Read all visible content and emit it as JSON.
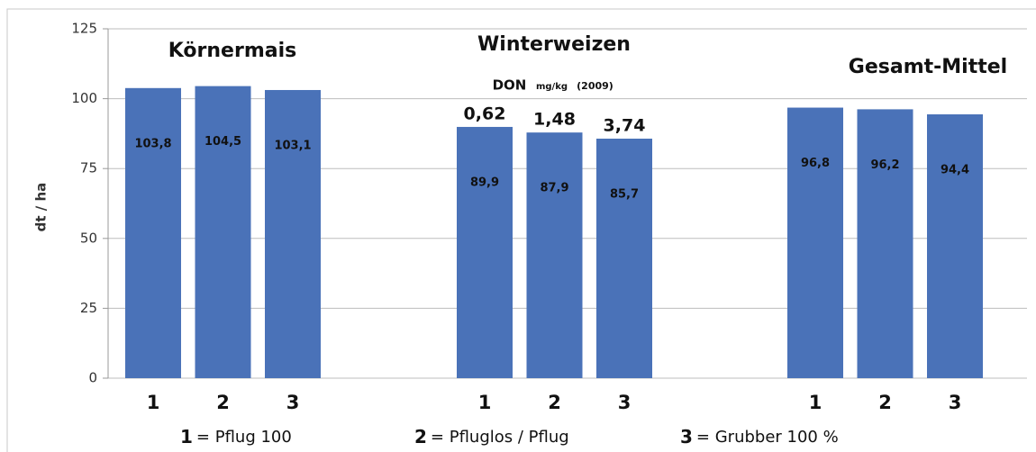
{
  "chart_data": {
    "type": "bar",
    "y_label": "dt / ha",
    "ylim": [
      0,
      125
    ],
    "yticks": [
      0,
      25,
      50,
      75,
      100,
      125
    ],
    "grid": true,
    "color": "#4a72b8",
    "groups": [
      {
        "name": "Körnermais",
        "categories": [
          "1",
          "2",
          "3"
        ],
        "values": [
          103.8,
          104.5,
          103.1
        ],
        "value_labels": [
          "103,8",
          "104,5",
          "103,1"
        ]
      },
      {
        "name": "Winterweizen",
        "categories": [
          "1",
          "2",
          "3"
        ],
        "values": [
          89.9,
          87.9,
          85.7
        ],
        "value_labels": [
          "89,9",
          "87,9",
          "85,7"
        ],
        "note": {
          "title": "DON",
          "unit": "mg/kg",
          "year": "(2009)",
          "labels": [
            "0,62",
            "1,48",
            "3,74"
          ]
        }
      },
      {
        "name": "Gesamt-Mittel",
        "categories": [
          "1",
          "2",
          "3"
        ],
        "values": [
          96.8,
          96.2,
          94.4
        ],
        "value_labels": [
          "96,8",
          "96,2",
          "94,4"
        ]
      }
    ],
    "legend": [
      {
        "key": "1",
        "text": "= Pflug  100"
      },
      {
        "key": "2",
        "text": "= Pfluglos / Pflug"
      },
      {
        "key": "3",
        "text": "= Grubber  100 %"
      }
    ]
  }
}
